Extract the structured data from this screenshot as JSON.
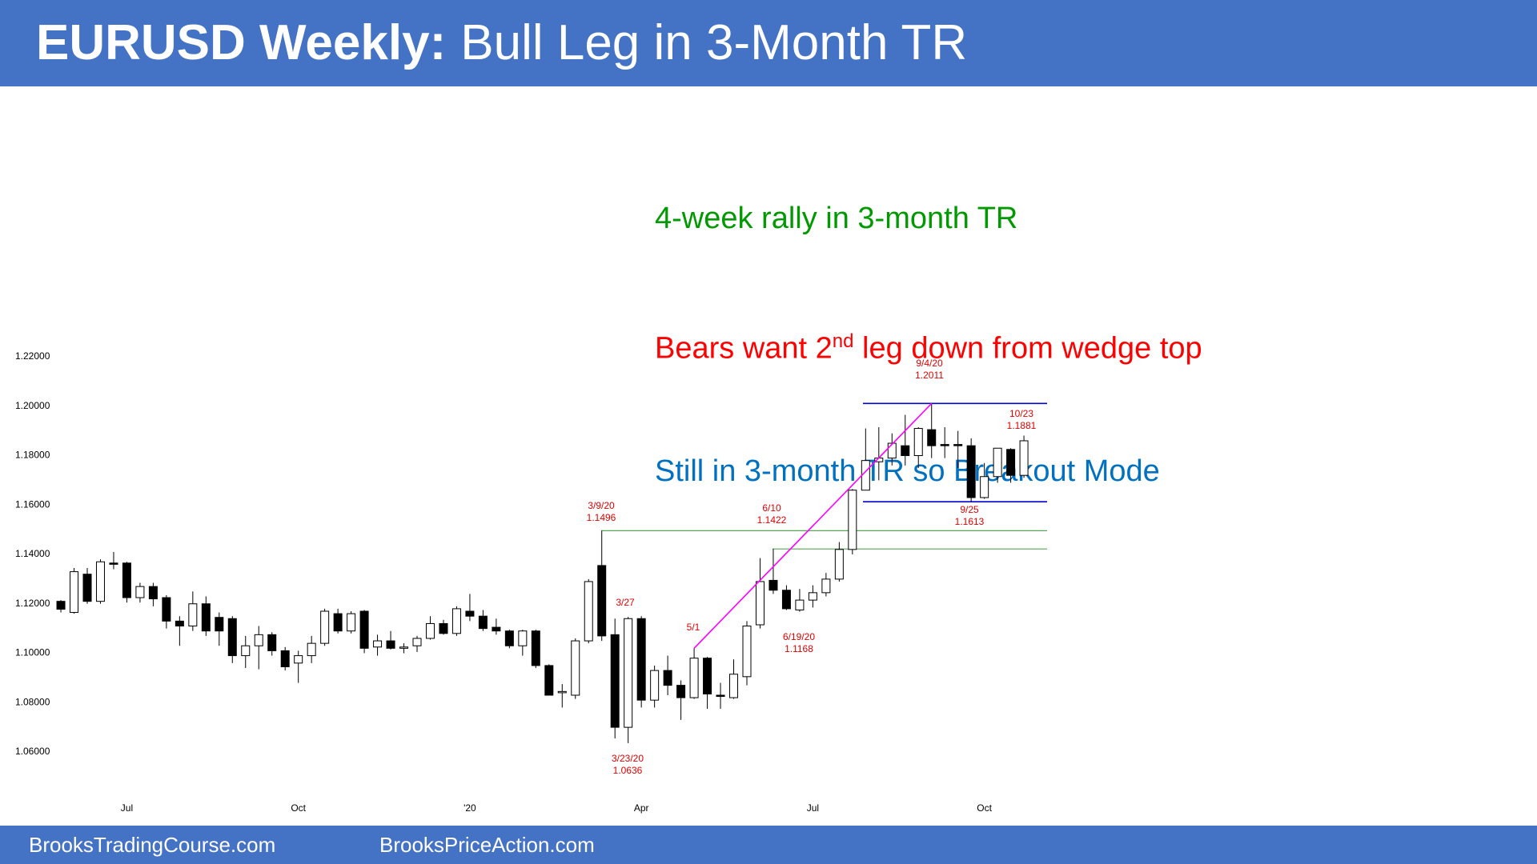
{
  "header": {
    "title_bold": "EURUSD Weekly:",
    "title_rest": "Bull Leg in 3-Month TR"
  },
  "notes": [
    "4-week rally in 3-month TR",
    [
      "Bears want 2",
      "nd",
      " leg down from wedge top"
    ],
    "Still in 3-month TR so Breakout Mode"
  ],
  "footer": [
    "BrooksTradingCourse.com",
    "BrooksPriceAction.com"
  ],
  "chart_data": {
    "type": "candlestick",
    "categories": [
      null,
      null,
      null,
      null,
      null,
      "Jul",
      null,
      null,
      null,
      null,
      null,
      null,
      null,
      null,
      null,
      null,
      null,
      null,
      "Oct",
      null,
      null,
      null,
      null,
      null,
      null,
      null,
      null,
      null,
      null,
      null,
      null,
      "'20",
      null,
      null,
      null,
      null,
      null,
      null,
      null,
      null,
      null,
      null,
      null,
      null,
      "Apr",
      null,
      null,
      null,
      null,
      null,
      null,
      null,
      null,
      null,
      null,
      null,
      null,
      "Jul",
      null,
      null,
      null,
      null,
      null,
      null,
      null,
      null,
      null,
      null,
      null,
      null,
      "Oct",
      null,
      null,
      null
    ],
    "open": [
      1.121,
      1.1165,
      1.132,
      1.121,
      1.1365,
      1.1365,
      1.1225,
      1.127,
      1.1225,
      1.113,
      1.111,
      1.12,
      1.1145,
      1.114,
      1.099,
      1.103,
      1.1075,
      1.101,
      1.096,
      1.099,
      1.104,
      1.116,
      1.109,
      1.117,
      1.1025,
      1.105,
      1.102,
      1.103,
      1.106,
      1.112,
      1.108,
      1.117,
      1.115,
      1.1105,
      1.109,
      1.103,
      1.109,
      1.095,
      1.084,
      1.083,
      1.105,
      1.1355,
      1.1075,
      1.07,
      1.114,
      1.081,
      1.093,
      1.087,
      1.082,
      1.098,
      1.083,
      1.082,
      1.0905,
      1.1115,
      1.1295,
      1.1255,
      1.1175,
      1.1215,
      1.1245,
      1.13,
      1.142,
      1.166,
      1.1775,
      1.179,
      1.184,
      1.18,
      1.1905,
      1.1845,
      1.1845,
      1.184,
      1.163,
      1.1715,
      1.1825,
      1.172
    ],
    "high": [
      1.1215,
      1.1345,
      1.1345,
      1.138,
      1.141,
      1.137,
      1.1285,
      1.1285,
      1.1235,
      1.115,
      1.125,
      1.123,
      1.1165,
      1.115,
      1.107,
      1.111,
      1.1085,
      1.1025,
      1.101,
      1.107,
      1.118,
      1.118,
      1.117,
      1.1175,
      1.1075,
      1.109,
      1.104,
      1.107,
      1.115,
      1.1135,
      1.119,
      1.124,
      1.1175,
      1.114,
      1.1095,
      1.1095,
      1.1095,
      1.0955,
      1.0875,
      1.106,
      1.13,
      1.1496,
      1.114,
      1.1147,
      1.115,
      1.095,
      1.099,
      1.089,
      1.102,
      1.0985,
      1.088,
      1.0975,
      1.113,
      1.1385,
      1.1422,
      1.1275,
      1.126,
      1.1275,
      1.1325,
      1.145,
      1.1665,
      1.191,
      1.1915,
      1.189,
      1.1965,
      1.1915,
      1.2011,
      1.1915,
      1.19,
      1.187,
      1.177,
      1.183,
      1.183,
      1.1881
    ],
    "low": [
      1.1165,
      1.116,
      1.12,
      1.12,
      1.134,
      1.1205,
      1.1205,
      1.119,
      1.11,
      1.103,
      1.109,
      1.107,
      1.103,
      1.096,
      1.094,
      1.0935,
      1.099,
      1.093,
      1.088,
      1.096,
      1.103,
      1.108,
      1.108,
      1.1,
      1.099,
      1.1015,
      1.1,
      1.1005,
      1.1055,
      1.1075,
      1.107,
      1.113,
      1.109,
      1.1075,
      1.102,
      1.099,
      1.094,
      1.083,
      1.078,
      1.0815,
      1.104,
      1.105,
      1.0655,
      1.0636,
      1.078,
      1.078,
      1.083,
      1.073,
      1.0815,
      1.0775,
      1.0775,
      1.0815,
      1.087,
      1.11,
      1.124,
      1.1175,
      1.1168,
      1.1185,
      1.123,
      1.129,
      1.14,
      1.1665,
      1.17,
      1.176,
      1.176,
      1.175,
      1.179,
      1.179,
      1.175,
      1.1613,
      1.1625,
      1.169,
      1.169,
      1.171
    ],
    "close": [
      1.1178,
      1.133,
      1.121,
      1.137,
      1.136,
      1.1225,
      1.127,
      1.122,
      1.113,
      1.111,
      1.12,
      1.109,
      1.109,
      1.099,
      1.103,
      1.1075,
      1.101,
      1.0945,
      1.099,
      1.104,
      1.117,
      1.109,
      1.116,
      1.102,
      1.105,
      1.102,
      1.1025,
      1.106,
      1.112,
      1.108,
      1.118,
      1.115,
      1.11,
      1.109,
      1.103,
      1.109,
      1.095,
      1.083,
      1.0845,
      1.105,
      1.129,
      1.107,
      1.07,
      1.114,
      1.081,
      1.093,
      1.087,
      1.082,
      1.098,
      1.0835,
      1.0825,
      1.0915,
      1.111,
      1.129,
      1.1255,
      1.118,
      1.1215,
      1.1245,
      1.13,
      1.142,
      1.166,
      1.178,
      1.179,
      1.185,
      1.18,
      1.191,
      1.184,
      1.184,
      1.184,
      1.163,
      1.1715,
      1.183,
      1.172,
      1.186
    ],
    "up_color": "#ffffff",
    "down_color": "#000000",
    "ylim": [
      1.06,
      1.22
    ],
    "yticks": [
      {
        "value": 1.06,
        "label": "1.06000"
      },
      {
        "value": 1.08,
        "label": "1.08000"
      },
      {
        "value": 1.1,
        "label": "1.10000"
      },
      {
        "value": 1.12,
        "label": "1.12000"
      },
      {
        "value": 1.14,
        "label": "1.14000"
      },
      {
        "value": 1.16,
        "label": "1.16000"
      },
      {
        "value": 1.18,
        "label": "1.18000"
      },
      {
        "value": 1.2,
        "label": "1.20000"
      },
      {
        "value": 1.22,
        "label": "1.22000"
      }
    ],
    "grid": false,
    "annotations": [
      {
        "date": "3/9/20",
        "price": 1.1496
      },
      {
        "date": "3/23/20",
        "price": 1.0636
      },
      {
        "date": "3/27"
      },
      {
        "date": "5/1"
      },
      {
        "date": "6/10",
        "price": 1.1422
      },
      {
        "date": "6/19/20",
        "price": 1.1168
      },
      {
        "date": "9/4/20",
        "price": 1.2011
      },
      {
        "date": "9/25",
        "price": 1.1613
      },
      {
        "date": "10/23",
        "price": 1.1881
      }
    ]
  }
}
